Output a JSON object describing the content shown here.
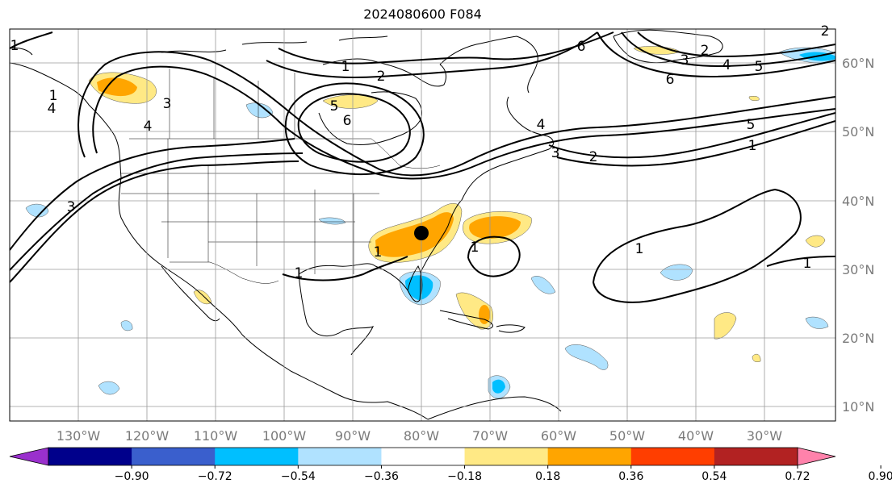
{
  "title": "2024080600 F084",
  "map": {
    "lon_labels": [
      "130°W",
      "120°W",
      "110°W",
      "100°W",
      "90°W",
      "80°W",
      "70°W",
      "60°W",
      "50°W",
      "40°W",
      "30°W"
    ],
    "lat_labels": [
      "60°N",
      "50°N",
      "40°N",
      "30°N",
      "20°N",
      "10°N"
    ],
    "contour_labels": [
      "1",
      "2",
      "3",
      "4",
      "5",
      "6",
      "6",
      "5",
      "4",
      "3",
      "2",
      "1",
      "3",
      "2",
      "6",
      "5",
      "4",
      "1",
      "1",
      "1",
      "1",
      "1",
      "4",
      "1",
      "3",
      "2",
      "1"
    ],
    "marker": "station-dot"
  },
  "colorbar": {
    "colors": [
      "#9a30cd",
      "#00008b",
      "#3a5fcd",
      "#00bfff",
      "#b0e2ff",
      "#ffffff",
      "#ffe985",
      "#ffa500",
      "#ff3e00",
      "#b22222",
      "#ff82ab"
    ],
    "extend_low_color": "#9a30cd",
    "extend_high_color": "#ff82ab",
    "tick_labels": [
      "−0.90",
      "−0.72",
      "−0.54",
      "−0.36",
      "−0.18",
      "0.18",
      "0.36",
      "0.54",
      "0.72",
      "0.90"
    ]
  }
}
